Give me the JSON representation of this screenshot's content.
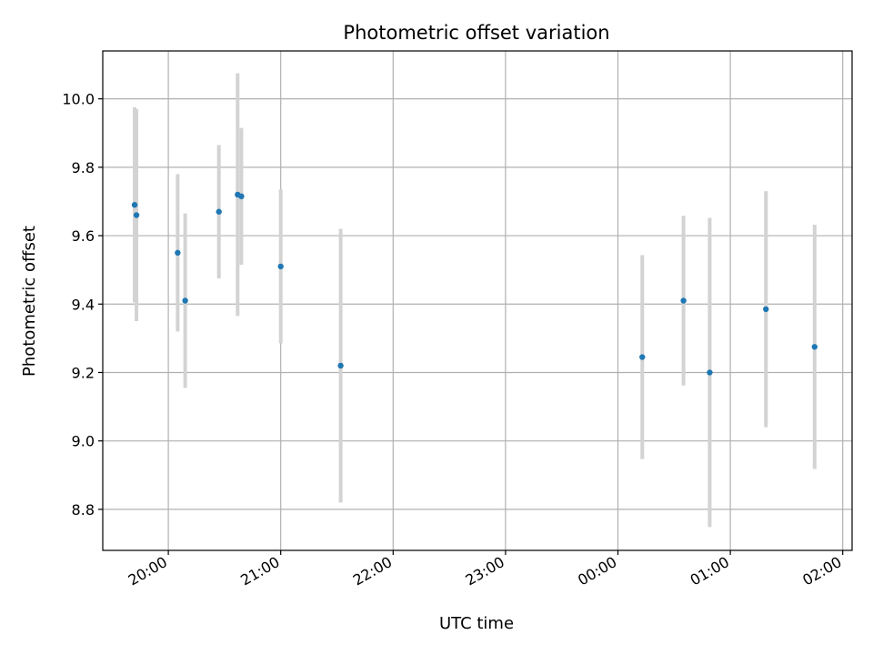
{
  "chart_data": {
    "type": "scatter",
    "title": "Photometric offset variation",
    "xlabel": "UTC time",
    "ylabel": "Photometric offset",
    "xlim": [
      "19:25",
      "02:05"
    ],
    "ylim": [
      8.68,
      10.14
    ],
    "x_ticks": [
      "20:00",
      "21:00",
      "22:00",
      "23:00",
      "00:00",
      "01:00",
      "02:00"
    ],
    "y_ticks": [
      8.8,
      9.0,
      9.2,
      9.4,
      9.6,
      9.8,
      10.0
    ],
    "grid": true,
    "colors": {
      "point": "#1f77b4",
      "error_bar": "#d3d3d3",
      "grid": "#b0b0b0"
    },
    "series": [
      {
        "points": [
          {
            "t": "19:42",
            "y": 9.69,
            "err": 0.285
          },
          {
            "t": "19:43",
            "y": 9.66,
            "err": 0.31
          },
          {
            "t": "20:05",
            "y": 9.55,
            "err": 0.23
          },
          {
            "t": "20:09",
            "y": 9.41,
            "err": 0.255
          },
          {
            "t": "20:27",
            "y": 9.67,
            "err": 0.195
          },
          {
            "t": "20:37",
            "y": 9.72,
            "err": 0.355
          },
          {
            "t": "20:39",
            "y": 9.715,
            "err": 0.2
          },
          {
            "t": "21:00",
            "y": 9.51,
            "err": 0.225
          },
          {
            "t": "21:32",
            "y": 9.22,
            "err": 0.4
          },
          {
            "t": "00:13",
            "y": 9.245,
            "err": 0.298
          },
          {
            "t": "00:35",
            "y": 9.41,
            "err": 0.248
          },
          {
            "t": "00:49",
            "y": 9.2,
            "err": 0.452
          },
          {
            "t": "01:19",
            "y": 9.385,
            "err": 0.345
          },
          {
            "t": "01:45",
            "y": 9.275,
            "err": 0.357
          }
        ]
      }
    ]
  }
}
